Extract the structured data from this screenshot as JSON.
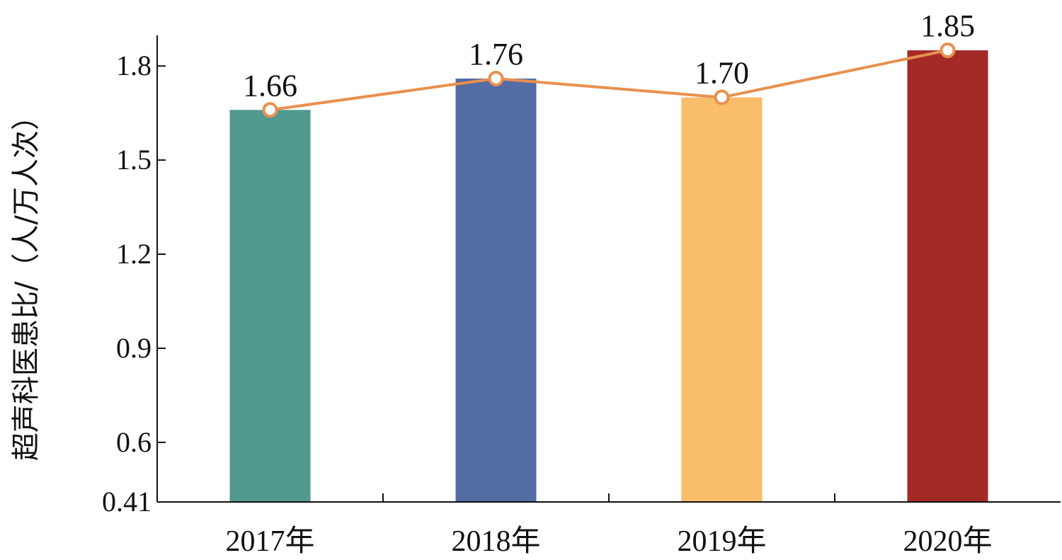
{
  "chart_data": {
    "type": "bar",
    "categories": [
      "2017年",
      "2018年",
      "2019年",
      "2020年"
    ],
    "values": [
      1.66,
      1.76,
      1.7,
      1.85
    ],
    "data_labels": [
      "1.66",
      "1.76",
      "1.70",
      "1.85"
    ],
    "line_overlay": true,
    "ylabel": "超声科医患比/（人/万人次）",
    "xlabel": "",
    "title": "",
    "ylim": [
      0.41,
      1.9
    ],
    "yticks": [
      0.41,
      0.6,
      0.9,
      1.2,
      1.5,
      1.8
    ],
    "ytick_labels": [
      "0.41",
      "0.6",
      "0.9",
      "1.2",
      "1.5",
      "1.8"
    ],
    "grid": false,
    "colors": {
      "bars": [
        "#529a8f",
        "#536ca4",
        "#fabd6c",
        "#a42a26"
      ],
      "line": "#e8904f",
      "marker_fill": "#ffffff"
    }
  }
}
